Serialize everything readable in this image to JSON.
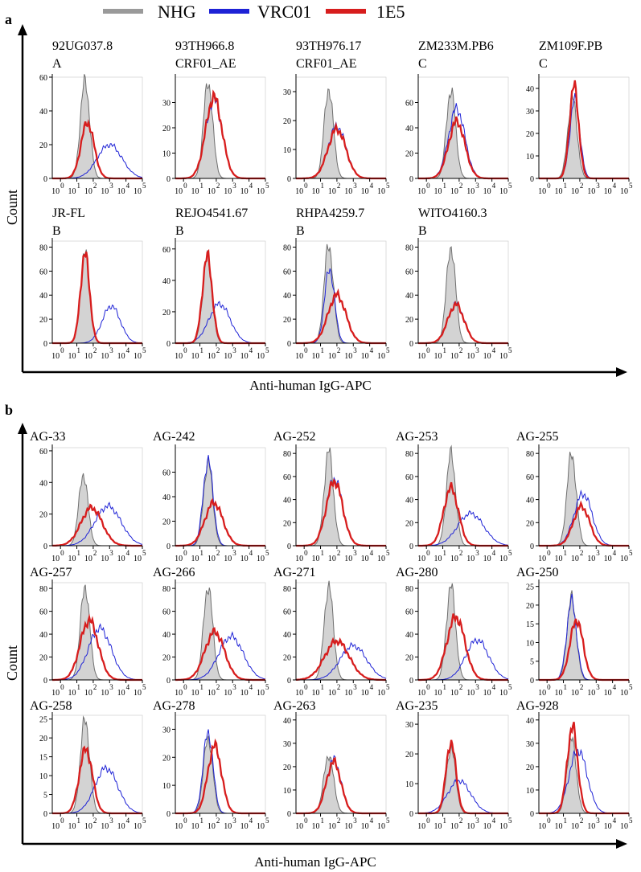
{
  "legend": [
    {
      "name": "NHG",
      "color": "#9a9a9a"
    },
    {
      "name": "VRC01",
      "color": "#1e22d6"
    },
    {
      "name": "1E5",
      "color": "#d71d1d"
    }
  ],
  "colors": {
    "nhg_fill": "#d3d3d3",
    "nhg_line": "#6e6e6e",
    "vrc01": "#1e22d6",
    "e15": "#d71d1d",
    "axis": "#000000"
  },
  "panel_a": {
    "letter": "a",
    "ylabel": "Count",
    "xlabel": "Anti-human IgG-APC"
  },
  "panel_b": {
    "letter": "b",
    "ylabel": "Count",
    "xlabel": "Anti-human IgG-APC"
  },
  "chart_data": [
    {
      "type": "area",
      "panel": "a",
      "title": [
        "92UG037.8",
        "A"
      ],
      "yticks": [
        0,
        20,
        40,
        60
      ],
      "ylim": [
        0,
        60
      ],
      "xlim": [
        -0.5,
        5
      ],
      "xticks": [
        0,
        1,
        2,
        3,
        4,
        5
      ],
      "tick_base": "10",
      "series": [
        {
          "name": "NHG",
          "peak_x": 1.5,
          "peak_y": 58,
          "sd": 0.28
        },
        {
          "name": "VRC01",
          "peak_x": 3.0,
          "peak_y": 20,
          "sd": 0.75
        },
        {
          "name": "1E5",
          "peak_x": 1.65,
          "peak_y": 33,
          "sd": 0.4
        }
      ]
    },
    {
      "type": "area",
      "panel": "a",
      "title": [
        "93TH966.8",
        "CRF01_AE"
      ],
      "yticks": [
        0,
        10,
        20,
        30
      ],
      "ylim": [
        0,
        40
      ],
      "xlim": [
        -0.5,
        5
      ],
      "xticks": [
        0,
        1,
        2,
        3,
        4,
        5
      ],
      "tick_base": "10",
      "series": [
        {
          "name": "NHG",
          "peak_x": 1.5,
          "peak_y": 38,
          "sd": 0.28
        },
        {
          "name": "VRC01",
          "peak_x": 1.85,
          "peak_y": 31,
          "sd": 0.5
        },
        {
          "name": "1E5",
          "peak_x": 1.85,
          "peak_y": 32,
          "sd": 0.5
        }
      ]
    },
    {
      "type": "area",
      "panel": "a",
      "title": [
        "93TH976.17",
        "CRF01_AE"
      ],
      "yticks": [
        0,
        10,
        20,
        30
      ],
      "ylim": [
        0,
        35
      ],
      "xlim": [
        -0.5,
        5
      ],
      "xticks": [
        0,
        1,
        2,
        3,
        4,
        5
      ],
      "tick_base": "10",
      "series": [
        {
          "name": "NHG",
          "peak_x": 1.5,
          "peak_y": 31,
          "sd": 0.28
        },
        {
          "name": "VRC01",
          "peak_x": 2.0,
          "peak_y": 18,
          "sd": 0.55
        },
        {
          "name": "1E5",
          "peak_x": 2.0,
          "peak_y": 17,
          "sd": 0.55
        }
      ]
    },
    {
      "type": "area",
      "panel": "a",
      "title": [
        "ZM233M.PB6",
        "C"
      ],
      "yticks": [
        0,
        20,
        40,
        60
      ],
      "ylim": [
        0,
        80
      ],
      "xlim": [
        -0.5,
        5
      ],
      "xticks": [
        0,
        1,
        2,
        3,
        4,
        5
      ],
      "tick_base": "10",
      "series": [
        {
          "name": "NHG",
          "peak_x": 1.5,
          "peak_y": 70,
          "sd": 0.28
        },
        {
          "name": "VRC01",
          "peak_x": 1.85,
          "peak_y": 55,
          "sd": 0.5
        },
        {
          "name": "1E5",
          "peak_x": 1.85,
          "peak_y": 45,
          "sd": 0.5
        }
      ]
    },
    {
      "type": "area",
      "panel": "a",
      "title": [
        "ZM109F.PB",
        "C"
      ],
      "yticks": [
        0,
        10,
        20,
        30,
        40
      ],
      "ylim": [
        0,
        45
      ],
      "xlim": [
        -0.5,
        5
      ],
      "xticks": [
        0,
        1,
        2,
        3,
        4,
        5
      ],
      "tick_base": "10",
      "series": [
        {
          "name": "NHG",
          "peak_x": 1.55,
          "peak_y": 36,
          "sd": 0.28
        },
        {
          "name": "VRC01",
          "peak_x": 1.7,
          "peak_y": 35,
          "sd": 0.3
        },
        {
          "name": "1E5",
          "peak_x": 1.65,
          "peak_y": 41,
          "sd": 0.28
        }
      ]
    },
    {
      "type": "area",
      "panel": "a",
      "title": [
        "JR-FL",
        "B"
      ],
      "yticks": [
        0,
        20,
        40,
        60,
        80
      ],
      "ylim": [
        0,
        85
      ],
      "xlim": [
        -0.5,
        5
      ],
      "xticks": [
        0,
        1,
        2,
        3,
        4,
        5
      ],
      "tick_base": "10",
      "series": [
        {
          "name": "NHG",
          "peak_x": 1.5,
          "peak_y": 75,
          "sd": 0.28
        },
        {
          "name": "VRC01",
          "peak_x": 3.1,
          "peak_y": 31,
          "sd": 0.55
        },
        {
          "name": "1E5",
          "peak_x": 1.5,
          "peak_y": 74,
          "sd": 0.28
        }
      ]
    },
    {
      "type": "area",
      "panel": "a",
      "title": [
        "REJO4541.67",
        "B"
      ],
      "yticks": [
        0,
        20,
        40,
        60
      ],
      "ylim": [
        0,
        65
      ],
      "xlim": [
        -0.5,
        5
      ],
      "xticks": [
        0,
        1,
        2,
        3,
        4,
        5
      ],
      "tick_base": "10",
      "series": [
        {
          "name": "NHG",
          "peak_x": 1.45,
          "peak_y": 55,
          "sd": 0.28
        },
        {
          "name": "VRC01",
          "peak_x": 2.2,
          "peak_y": 25,
          "sd": 0.65
        },
        {
          "name": "1E5",
          "peak_x": 1.45,
          "peak_y": 55,
          "sd": 0.3
        }
      ]
    },
    {
      "type": "area",
      "panel": "a",
      "title": [
        "RHPA4259.7",
        "B"
      ],
      "yticks": [
        0,
        20,
        40,
        60,
        80
      ],
      "ylim": [
        0,
        85
      ],
      "xlim": [
        -0.5,
        5
      ],
      "xticks": [
        0,
        1,
        2,
        3,
        4,
        5
      ],
      "tick_base": "10",
      "series": [
        {
          "name": "NHG",
          "peak_x": 1.5,
          "peak_y": 82,
          "sd": 0.28
        },
        {
          "name": "VRC01",
          "peak_x": 1.55,
          "peak_y": 62,
          "sd": 0.3
        },
        {
          "name": "1E5",
          "peak_x": 2.0,
          "peak_y": 40,
          "sd": 0.55
        }
      ]
    },
    {
      "type": "area",
      "panel": "a",
      "title": [
        "WITO4160.3",
        "B"
      ],
      "yticks": [
        0,
        20,
        40,
        60,
        80
      ],
      "ylim": [
        0,
        85
      ],
      "xlim": [
        -0.5,
        5
      ],
      "xticks": [
        0,
        1,
        2,
        3,
        4,
        5
      ],
      "tick_base": "10",
      "series": [
        {
          "name": "NHG",
          "peak_x": 1.5,
          "peak_y": 80,
          "sd": 0.28
        },
        {
          "name": "VRC01",
          "peak_x": 1.8,
          "peak_y": 33,
          "sd": 0.5
        },
        {
          "name": "1E5",
          "peak_x": 1.8,
          "peak_y": 32,
          "sd": 0.5
        }
      ]
    },
    {
      "type": "area",
      "panel": "b",
      "title": [
        "AG-33"
      ],
      "yticks": [
        0,
        20,
        40,
        60
      ],
      "ylim": [
        0,
        62
      ],
      "xlim": [
        -0.5,
        5
      ],
      "xticks": [
        0,
        1,
        2,
        3,
        4,
        5
      ],
      "tick_base": "10",
      "series": [
        {
          "name": "NHG",
          "peak_x": 1.4,
          "peak_y": 45,
          "sd": 0.28
        },
        {
          "name": "VRC01",
          "peak_x": 2.9,
          "peak_y": 25,
          "sd": 0.8
        },
        {
          "name": "1E5",
          "peak_x": 1.9,
          "peak_y": 24,
          "sd": 0.65
        }
      ]
    },
    {
      "type": "area",
      "panel": "b",
      "title": [
        "AG-242"
      ],
      "yticks": [
        0,
        20,
        40,
        60
      ],
      "ylim": [
        0,
        80
      ],
      "xlim": [
        -0.5,
        5
      ],
      "xticks": [
        0,
        1,
        2,
        3,
        4,
        5
      ],
      "tick_base": "10",
      "series": [
        {
          "name": "NHG",
          "peak_x": 1.5,
          "peak_y": 68,
          "sd": 0.28
        },
        {
          "name": "VRC01",
          "peak_x": 1.5,
          "peak_y": 70,
          "sd": 0.3
        },
        {
          "name": "1E5",
          "peak_x": 1.85,
          "peak_y": 35,
          "sd": 0.55
        }
      ]
    },
    {
      "type": "area",
      "panel": "b",
      "title": [
        "AG-252"
      ],
      "yticks": [
        0,
        20,
        40,
        60,
        80
      ],
      "ylim": [
        0,
        85
      ],
      "xlim": [
        -0.5,
        5
      ],
      "xticks": [
        0,
        1,
        2,
        3,
        4,
        5
      ],
      "tick_base": "10",
      "series": [
        {
          "name": "NHG",
          "peak_x": 1.5,
          "peak_y": 82,
          "sd": 0.28
        },
        {
          "name": "VRC01",
          "peak_x": 1.85,
          "peak_y": 58,
          "sd": 0.5
        },
        {
          "name": "1E5",
          "peak_x": 1.85,
          "peak_y": 56,
          "sd": 0.5
        }
      ]
    },
    {
      "type": "area",
      "panel": "b",
      "title": [
        "AG-253"
      ],
      "yticks": [
        0,
        20,
        40,
        60,
        80
      ],
      "ylim": [
        0,
        85
      ],
      "xlim": [
        -0.5,
        5
      ],
      "xticks": [
        0,
        1,
        2,
        3,
        4,
        5
      ],
      "tick_base": "10",
      "series": [
        {
          "name": "NHG",
          "peak_x": 1.5,
          "peak_y": 80,
          "sd": 0.28
        },
        {
          "name": "VRC01",
          "peak_x": 2.7,
          "peak_y": 28,
          "sd": 0.8
        },
        {
          "name": "1E5",
          "peak_x": 1.5,
          "peak_y": 50,
          "sd": 0.45
        }
      ]
    },
    {
      "type": "area",
      "panel": "b",
      "title": [
        "AG-255"
      ],
      "yticks": [
        0,
        20,
        40,
        60,
        80
      ],
      "ylim": [
        0,
        85
      ],
      "xlim": [
        -0.5,
        5
      ],
      "xticks": [
        0,
        1,
        2,
        3,
        4,
        5
      ],
      "tick_base": "10",
      "series": [
        {
          "name": "NHG",
          "peak_x": 1.5,
          "peak_y": 80,
          "sd": 0.28
        },
        {
          "name": "VRC01",
          "peak_x": 2.2,
          "peak_y": 45,
          "sd": 0.55
        },
        {
          "name": "1E5",
          "peak_x": 2.1,
          "peak_y": 34,
          "sd": 0.5
        }
      ]
    },
    {
      "type": "area",
      "panel": "b",
      "title": [
        "AG-257"
      ],
      "yticks": [
        0,
        20,
        40,
        60,
        80
      ],
      "ylim": [
        0,
        85
      ],
      "xlim": [
        -0.5,
        5
      ],
      "xticks": [
        0,
        1,
        2,
        3,
        4,
        5
      ],
      "tick_base": "10",
      "series": [
        {
          "name": "NHG",
          "peak_x": 1.5,
          "peak_y": 82,
          "sd": 0.28
        },
        {
          "name": "VRC01",
          "peak_x": 2.4,
          "peak_y": 45,
          "sd": 0.7
        },
        {
          "name": "1E5",
          "peak_x": 1.75,
          "peak_y": 52,
          "sd": 0.55
        }
      ]
    },
    {
      "type": "area",
      "panel": "b",
      "title": [
        "AG-266"
      ],
      "yticks": [
        0,
        20,
        40,
        60,
        80
      ],
      "ylim": [
        0,
        85
      ],
      "xlim": [
        -0.5,
        5
      ],
      "xticks": [
        0,
        1,
        2,
        3,
        4,
        5
      ],
      "tick_base": "10",
      "series": [
        {
          "name": "NHG",
          "peak_x": 1.5,
          "peak_y": 82,
          "sd": 0.28
        },
        {
          "name": "VRC01",
          "peak_x": 2.9,
          "peak_y": 38,
          "sd": 0.75
        },
        {
          "name": "1E5",
          "peak_x": 1.9,
          "peak_y": 42,
          "sd": 0.6
        }
      ]
    },
    {
      "type": "area",
      "panel": "b",
      "title": [
        "AG-271"
      ],
      "yticks": [
        0,
        20,
        40,
        60,
        80
      ],
      "ylim": [
        0,
        85
      ],
      "xlim": [
        -0.5,
        5
      ],
      "xticks": [
        0,
        1,
        2,
        3,
        4,
        5
      ],
      "tick_base": "10",
      "series": [
        {
          "name": "NHG",
          "peak_x": 1.5,
          "peak_y": 82,
          "sd": 0.28
        },
        {
          "name": "VRC01",
          "peak_x": 3.0,
          "peak_y": 30,
          "sd": 0.8
        },
        {
          "name": "1E5",
          "peak_x": 2.0,
          "peak_y": 34,
          "sd": 0.75
        }
      ]
    },
    {
      "type": "area",
      "panel": "b",
      "title": [
        "AG-280"
      ],
      "yticks": [
        0,
        20,
        40,
        60,
        80
      ],
      "ylim": [
        0,
        85
      ],
      "xlim": [
        -0.5,
        5
      ],
      "xticks": [
        0,
        1,
        2,
        3,
        4,
        5
      ],
      "tick_base": "10",
      "series": [
        {
          "name": "NHG",
          "peak_x": 1.5,
          "peak_y": 82,
          "sd": 0.28
        },
        {
          "name": "VRC01",
          "peak_x": 3.1,
          "peak_y": 35,
          "sd": 0.7
        },
        {
          "name": "1E5",
          "peak_x": 1.8,
          "peak_y": 55,
          "sd": 0.55
        }
      ]
    },
    {
      "type": "area",
      "panel": "b",
      "title": [
        "AG-250"
      ],
      "yticks": [
        0,
        5.0,
        10,
        15,
        20,
        25
      ],
      "ylim": [
        0,
        26
      ],
      "xlim": [
        -0.5,
        5
      ],
      "xticks": [
        0,
        1,
        2,
        3,
        4,
        5
      ],
      "tick_base": "10",
      "series": [
        {
          "name": "NHG",
          "peak_x": 1.5,
          "peak_y": 22,
          "sd": 0.28
        },
        {
          "name": "VRC01",
          "peak_x": 1.5,
          "peak_y": 21,
          "sd": 0.3
        },
        {
          "name": "1E5",
          "peak_x": 1.8,
          "peak_y": 16,
          "sd": 0.4
        }
      ]
    },
    {
      "type": "area",
      "panel": "b",
      "title": [
        "AG-258"
      ],
      "yticks": [
        0,
        5,
        10,
        15,
        20,
        25
      ],
      "ylim": [
        0,
        26
      ],
      "xlim": [
        -0.5,
        5
      ],
      "xticks": [
        0,
        1,
        2,
        3,
        4,
        5
      ],
      "tick_base": "10",
      "series": [
        {
          "name": "NHG",
          "peak_x": 1.5,
          "peak_y": 25,
          "sd": 0.28
        },
        {
          "name": "VRC01",
          "peak_x": 2.8,
          "peak_y": 12,
          "sd": 0.7
        },
        {
          "name": "1E5",
          "peak_x": 1.55,
          "peak_y": 17,
          "sd": 0.4
        }
      ]
    },
    {
      "type": "area",
      "panel": "b",
      "title": [
        "AG-278"
      ],
      "yticks": [
        0,
        10,
        20,
        30
      ],
      "ylim": [
        0,
        35
      ],
      "xlim": [
        -0.5,
        5
      ],
      "xticks": [
        0,
        1,
        2,
        3,
        4,
        5
      ],
      "tick_base": "10",
      "series": [
        {
          "name": "NHG",
          "peak_x": 1.5,
          "peak_y": 27,
          "sd": 0.28
        },
        {
          "name": "VRC01",
          "peak_x": 1.5,
          "peak_y": 29,
          "sd": 0.3
        },
        {
          "name": "1E5",
          "peak_x": 1.9,
          "peak_y": 24,
          "sd": 0.42
        }
      ]
    },
    {
      "type": "area",
      "panel": "b",
      "title": [
        "AG-263"
      ],
      "yticks": [
        0,
        10,
        20,
        30,
        40
      ],
      "ylim": [
        0,
        42
      ],
      "xlim": [
        -0.5,
        5
      ],
      "xticks": [
        0,
        1,
        2,
        3,
        4,
        5
      ],
      "tick_base": "10",
      "series": [
        {
          "name": "NHG",
          "peak_x": 1.5,
          "peak_y": 25,
          "sd": 0.3
        },
        {
          "name": "VRC01",
          "peak_x": 1.8,
          "peak_y": 23,
          "sd": 0.45
        },
        {
          "name": "1E5",
          "peak_x": 1.8,
          "peak_y": 22,
          "sd": 0.45
        }
      ]
    },
    {
      "type": "area",
      "panel": "b",
      "title": [
        "AG-235"
      ],
      "yticks": [
        0,
        10,
        20,
        30
      ],
      "ylim": [
        0,
        33
      ],
      "xlim": [
        -0.5,
        5
      ],
      "xticks": [
        0,
        1,
        2,
        3,
        4,
        5
      ],
      "tick_base": "10",
      "series": [
        {
          "name": "NHG",
          "peak_x": 1.5,
          "peak_y": 22,
          "sd": 0.28
        },
        {
          "name": "VRC01",
          "peak_x": 2.0,
          "peak_y": 11,
          "sd": 0.7
        },
        {
          "name": "1E5",
          "peak_x": 1.5,
          "peak_y": 24,
          "sd": 0.3
        }
      ]
    },
    {
      "type": "area",
      "panel": "b",
      "title": [
        "AG-928"
      ],
      "yticks": [
        0,
        10,
        20,
        30,
        40
      ],
      "ylim": [
        0,
        42
      ],
      "xlim": [
        -0.5,
        5
      ],
      "xticks": [
        0,
        1,
        2,
        3,
        4,
        5
      ],
      "tick_base": "10",
      "series": [
        {
          "name": "NHG",
          "peak_x": 1.5,
          "peak_y": 32,
          "sd": 0.28
        },
        {
          "name": "VRC01",
          "peak_x": 1.9,
          "peak_y": 27,
          "sd": 0.55
        },
        {
          "name": "1E5",
          "peak_x": 1.55,
          "peak_y": 37,
          "sd": 0.32
        }
      ]
    }
  ]
}
